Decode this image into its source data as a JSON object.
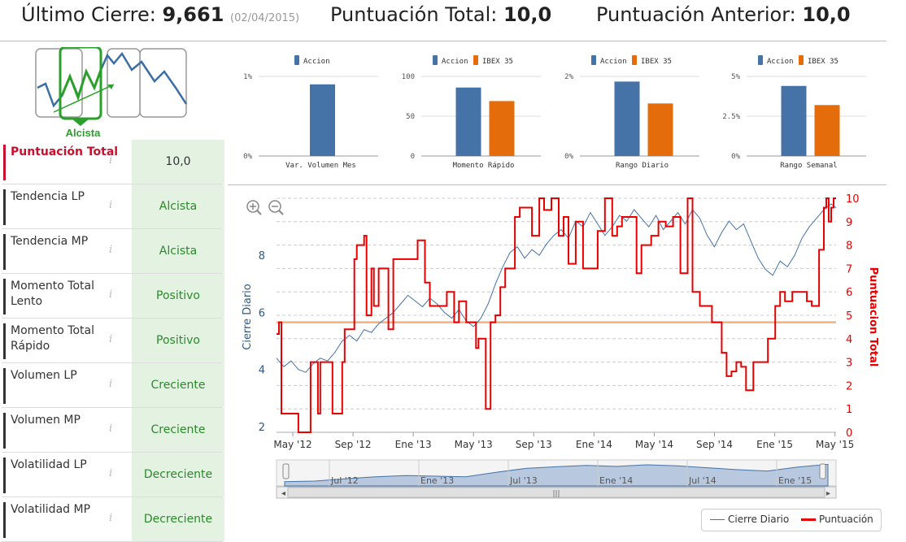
{
  "header": {
    "last_close_label": "Último Cierre:",
    "last_close_value": "9,661",
    "last_close_date": "(02/04/2015)",
    "total_score_label": "Puntuación Total:",
    "total_score_value": "10,0",
    "previous_score_label": "Puntuación Anterior:",
    "previous_score_value": "10,0"
  },
  "trend": {
    "label": "Alcista"
  },
  "info_icon": "i",
  "rows": [
    {
      "label": "Puntuación Total",
      "value": "10,0",
      "highlight": true
    },
    {
      "label": "Tendencia LP",
      "value": "Alcista"
    },
    {
      "label": "Tendencia MP",
      "value": "Alcista"
    },
    {
      "label": "Momento Total Lento",
      "value": "Positivo"
    },
    {
      "label": "Momento Total Rápido",
      "value": "Positivo"
    },
    {
      "label": "Volumen LP",
      "value": "Creciente"
    },
    {
      "label": "Volumen MP",
      "value": "Creciente"
    },
    {
      "label": "Volatilidad LP",
      "value": "Decreciente"
    },
    {
      "label": "Volatilidad MP",
      "value": "Decreciente"
    }
  ],
  "colors": {
    "accion": "#4572a7",
    "ibex": "#e46c0a",
    "score": "#e60000",
    "close": "#4572a7",
    "good": "#2a8a2a",
    "cellbg": "#e4f2e2",
    "threshold": "#f0b080"
  },
  "chart_data": [
    {
      "type": "bar",
      "title": "",
      "xlabel": "Var. Volumen Mes",
      "ylabel": "",
      "ylim": [
        0,
        1
      ],
      "yticks": [
        "0%",
        "1%"
      ],
      "series": [
        {
          "name": "Accion",
          "values": [
            0.9
          ]
        }
      ]
    },
    {
      "type": "bar",
      "title": "",
      "xlabel": "Momento Rápido",
      "ylabel": "",
      "ylim": [
        0,
        100
      ],
      "yticks": [
        "0",
        "50",
        "100"
      ],
      "series": [
        {
          "name": "Accion",
          "values": [
            86
          ]
        },
        {
          "name": "IBEX 35",
          "values": [
            69
          ]
        }
      ]
    },
    {
      "type": "bar",
      "title": "",
      "xlabel": "Rango Diario",
      "ylabel": "",
      "ylim": [
        0,
        2
      ],
      "yticks": [
        "0%",
        "2%"
      ],
      "series": [
        {
          "name": "Accion",
          "values": [
            1.87
          ]
        },
        {
          "name": "IBEX 35",
          "values": [
            1.32
          ]
        }
      ]
    },
    {
      "type": "bar",
      "title": "",
      "xlabel": "Rango Semanal",
      "ylabel": "",
      "ylim": [
        0,
        5
      ],
      "yticks": [
        "0%",
        "2.5%",
        "5%"
      ],
      "series": [
        {
          "name": "Accion",
          "values": [
            4.4
          ]
        },
        {
          "name": "IBEX 35",
          "values": [
            3.2
          ]
        }
      ]
    },
    {
      "type": "line",
      "title": "",
      "xlabel": "",
      "y_left_label": "Cierre Diario",
      "y_right_label": "Puntuacion Total",
      "x_ticks": [
        "May '12",
        "Sep '12",
        "Ene '13",
        "May '13",
        "Sep '13",
        "Ene '14",
        "May '14",
        "Sep '14",
        "Ene '15",
        "May '15"
      ],
      "y_left_ticks": [
        "2",
        "4",
        "6",
        "8"
      ],
      "y_left_range": [
        2,
        10
      ],
      "y_right_ticks": [
        "0",
        "1",
        "2",
        "3",
        "4",
        "5",
        "6",
        "7",
        "8",
        "9",
        "10"
      ],
      "y_right_range": [
        0,
        10
      ],
      "threshold": 4.7,
      "series": [
        {
          "name": "Cierre Diario",
          "axis": "left",
          "x": [
            0,
            0.3,
            0.6,
            0.9,
            1.2,
            1.5,
            1.8,
            2.1,
            2.4,
            2.7,
            3.0,
            3.3,
            3.6,
            3.9,
            4.2,
            4.5,
            4.8,
            5.1,
            5.4,
            5.7,
            6.0,
            6.3,
            6.6,
            6.9,
            7.2,
            7.5,
            7.8,
            8.1,
            8.4,
            8.7,
            9.0,
            9.3,
            9.6,
            9.9,
            10.2,
            10.5,
            10.8,
            11.1,
            11.4,
            11.7,
            12.0,
            12.3,
            12.6,
            12.9,
            13.2,
            13.5,
            13.8,
            14.1,
            14.4,
            14.7,
            15.0,
            15.3,
            15.6,
            15.9,
            16.2,
            16.5,
            16.8,
            17.1,
            17.4,
            17.7,
            18.0,
            18.3,
            18.6,
            18.9,
            19.2,
            19.5,
            19.8,
            20.1,
            20.4,
            20.7,
            21.0,
            21.3,
            21.6,
            21.9,
            22.2,
            22.5,
            22.8,
            23.0
          ],
          "values": [
            4.4,
            4.1,
            4.3,
            4.0,
            3.9,
            4.2,
            4.4,
            4.3,
            4.6,
            5.0,
            5.2,
            5.0,
            5.4,
            5.3,
            5.6,
            5.8,
            6.0,
            6.3,
            6.6,
            6.4,
            6.2,
            6.5,
            6.3,
            6.0,
            5.8,
            6.1,
            5.7,
            5.5,
            5.8,
            6.3,
            7.0,
            7.6,
            8.1,
            8.3,
            7.9,
            8.2,
            8.0,
            8.4,
            8.7,
            8.9,
            8.6,
            9.2,
            9.0,
            9.5,
            9.1,
            8.7,
            9.0,
            9.4,
            9.2,
            9.6,
            9.3,
            9.0,
            9.4,
            8.9,
            9.2,
            9.5,
            9.1,
            9.6,
            9.3,
            8.7,
            8.3,
            8.8,
            9.2,
            8.9,
            9.1,
            8.5,
            7.9,
            7.5,
            7.3,
            7.8,
            7.6,
            8.0,
            8.6,
            9.0,
            9.3,
            9.6,
            9.8,
            9.66
          ]
        },
        {
          "name": "Puntuación",
          "axis": "right",
          "x": [
            0,
            0.1,
            0.2,
            0.8,
            0.9,
            1.3,
            1.4,
            1.5,
            1.7,
            1.8,
            2.2,
            2.3,
            2.7,
            2.8,
            3.2,
            3.3,
            3.6,
            3.7,
            3.9,
            4.0,
            4.2,
            4.3,
            4.5,
            4.6,
            4.8,
            5.0,
            5.2,
            5.3,
            5.6,
            5.8,
            6.0,
            6.1,
            6.3,
            6.8,
            7.0,
            7.3,
            7.5,
            7.8,
            8.0,
            8.2,
            8.3,
            8.6,
            8.8,
            9.0,
            9.2,
            9.4,
            9.6,
            9.8,
            10.0,
            10.3,
            10.5,
            10.8,
            11.0,
            11.3,
            11.6,
            11.8,
            12.0,
            12.3,
            12.6,
            12.8,
            13.2,
            13.5,
            13.8,
            14.0,
            14.2,
            14.5,
            14.8,
            15.0,
            15.4,
            15.7,
            16.0,
            16.3,
            16.6,
            16.9,
            17.1,
            17.4,
            17.7,
            17.9,
            18.3,
            18.5,
            18.7,
            18.9,
            19.1,
            19.3,
            19.6,
            19.9,
            20.2,
            20.5,
            20.7,
            20.9,
            21.2,
            21.5,
            21.8,
            22.0,
            22.3,
            22.5,
            22.6,
            22.7,
            22.8,
            22.9,
            23.0
          ],
          "values": [
            4.2,
            4.7,
            0.8,
            0.8,
            0,
            0,
            3.0,
            3.0,
            0.8,
            3.0,
            3.0,
            0.8,
            3.0,
            4.4,
            7.4,
            8.0,
            8.4,
            5.0,
            7.0,
            5.4,
            7.0,
            7.0,
            7.0,
            4.4,
            7.4,
            7.4,
            7.4,
            7.4,
            7.4,
            8.2,
            8.2,
            6.4,
            5.4,
            5.4,
            6.0,
            4.7,
            5.6,
            4.7,
            4.7,
            3.6,
            4.0,
            1.0,
            4.7,
            5.0,
            6.2,
            7.0,
            7.0,
            9.2,
            9.6,
            9.6,
            8.4,
            10.0,
            9.5,
            10.0,
            8.4,
            9.2,
            7.2,
            9.0,
            7.0,
            7.0,
            8.6,
            10.0,
            8.4,
            8.8,
            9.2,
            9.2,
            6.8,
            8.0,
            8.4,
            9.0,
            8.8,
            9.2,
            6.8,
            10.0,
            6.0,
            5.4,
            5.4,
            4.7,
            3.4,
            2.4,
            2.6,
            3.0,
            2.8,
            1.8,
            3.0,
            3.0,
            4.0,
            5.4,
            6.0,
            5.6,
            6.0,
            6.0,
            5.6,
            5.4,
            7.8,
            9.6,
            10.0,
            9.0,
            9.6,
            10.0,
            10.0
          ]
        }
      ]
    },
    {
      "type": "area",
      "title": "",
      "x_ticks": [
        "Jul '12",
        "Ene '13",
        "Jul '13",
        "Ene '14",
        "Jul '14",
        "Ene '15"
      ],
      "series": [
        {
          "name": "Cierre Diario",
          "values": [
            4.3,
            4.5,
            5.2,
            5.8,
            6.2,
            6.0,
            5.8,
            7.2,
            8.4,
            8.9,
            9.3,
            9.0,
            9.5,
            9.2,
            8.6,
            8.0,
            7.6,
            8.8,
            9.66
          ]
        }
      ]
    }
  ],
  "zoom": {
    "in_label": "⊕",
    "out_label": "⊖"
  },
  "scroll": {
    "left_arrow": "◂",
    "right_arrow": "▸",
    "grip": "|||"
  },
  "legend": {
    "close_label": "Cierre Diario",
    "score_label": "Puntuación"
  }
}
